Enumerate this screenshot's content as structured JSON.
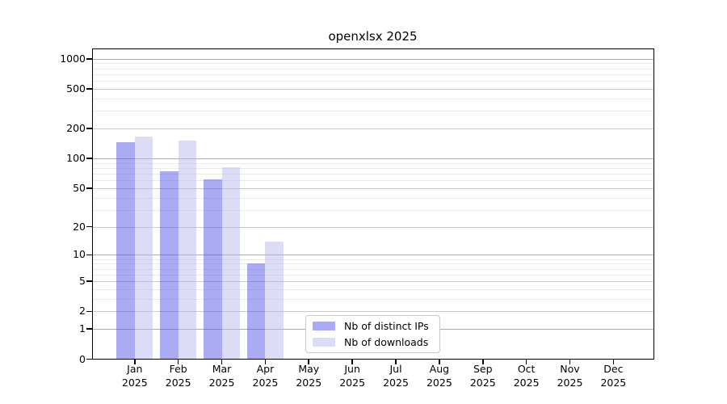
{
  "title": "openxlsx 2025",
  "chart_data": {
    "type": "bar",
    "title": "openxlsx 2025",
    "scale": "log1p",
    "grid": true,
    "legend_position": "lower-center-inside",
    "year": "2025",
    "months": [
      "Jan",
      "Feb",
      "Mar",
      "Apr",
      "May",
      "Jun",
      "Jul",
      "Aug",
      "Sep",
      "Oct",
      "Nov",
      "Dec"
    ],
    "categories": [
      "Jan 2025",
      "Feb 2025",
      "Mar 2025",
      "Apr 2025",
      "May 2025",
      "Jun 2025",
      "Jul 2025",
      "Aug 2025",
      "Sep 2025",
      "Oct 2025",
      "Nov 2025",
      "Dec 2025"
    ],
    "series": [
      {
        "name": "Nb of distinct IPs",
        "color": "#ababf3",
        "fill": "rgba(87,87,231,0.5)",
        "values": [
          147,
          75,
          62,
          8,
          0,
          0,
          0,
          0,
          0,
          0,
          0,
          0
        ]
      },
      {
        "name": "Nb of downloads",
        "color": "#dcdcf7",
        "fill": "rgba(185,185,239,0.5)",
        "values": [
          167,
          152,
          81,
          14,
          0,
          0,
          0,
          0,
          0,
          0,
          0,
          0
        ]
      }
    ],
    "y_ticks": [
      0,
      1,
      2,
      5,
      10,
      20,
      50,
      100,
      200,
      500,
      1000
    ],
    "ylim": [
      0,
      1280
    ],
    "axis_color": "#000000",
    "grid_major_color": "#ababab",
    "grid_mid_color": "#c9c9c9",
    "grid_minor_color": "#e9e9e9"
  }
}
